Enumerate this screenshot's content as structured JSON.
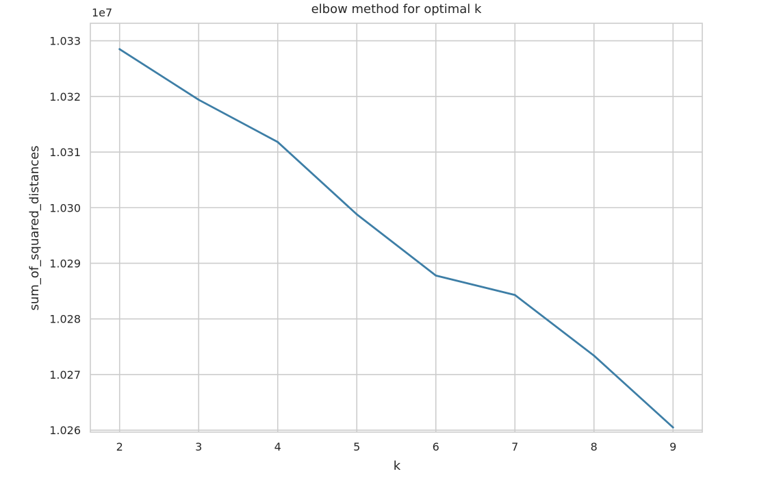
{
  "chart_data": {
    "type": "line",
    "title": "elbow method for optimal k",
    "xlabel": "k",
    "ylabel": "sum_of_squared_distances",
    "y_offset_label": "1e7",
    "x": [
      2,
      3,
      4,
      5,
      6,
      7,
      8,
      9
    ],
    "series": [
      {
        "values": [
          10328500,
          10319400,
          10311800,
          10298800,
          10287800,
          10284300,
          10273400,
          10260500
        ]
      }
    ],
    "xlim": [
      1.63,
      9.37
    ],
    "ylim": [
      10259650,
      10333150
    ],
    "x_ticks": [
      2,
      3,
      4,
      5,
      6,
      7,
      8,
      9
    ],
    "y_ticks": [
      10260000,
      10270000,
      10280000,
      10290000,
      10300000,
      10310000,
      10320000,
      10330000
    ],
    "y_tick_labels": [
      "1.026",
      "1.027",
      "1.028",
      "1.029",
      "1.030",
      "1.031",
      "1.032",
      "1.033"
    ],
    "grid": true,
    "line_color": "#3d7ea6",
    "grid_color": "#cccccc",
    "spine_color": "#cccccc"
  }
}
